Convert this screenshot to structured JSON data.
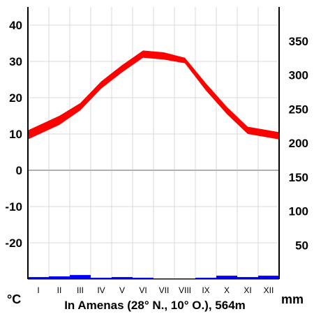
{
  "chart_data": {
    "type": "line",
    "title": "In Amenas (28° N., 10° O.), 564m",
    "categories": [
      "I",
      "II",
      "III",
      "IV",
      "V",
      "VI",
      "VII",
      "VIII",
      "IX",
      "X",
      "XI",
      "XII"
    ],
    "temperature": {
      "unit_label": "°C",
      "ylim": [
        -30,
        45
      ],
      "ticks": [
        40,
        30,
        20,
        10,
        0,
        -10,
        -20
      ],
      "band_low": [
        8.5,
        12.5,
        16.5,
        22.5,
        27,
        31,
        30.5,
        29.5,
        22,
        15.5,
        10,
        8.5
      ],
      "band_high": [
        11,
        15,
        18.5,
        24.5,
        29,
        33,
        32.5,
        31,
        24,
        17.5,
        12,
        10.5
      ],
      "color": "#ff0000"
    },
    "precipitation": {
      "unit_label": "mm",
      "ylim": [
        0,
        400
      ],
      "ticks": [
        350,
        300,
        250,
        200,
        150,
        100,
        50
      ],
      "values": [
        3,
        4,
        6,
        2,
        3,
        2,
        1,
        1,
        2,
        5,
        3,
        5
      ],
      "color": "#0000ff"
    },
    "grid": true,
    "zero_line_color": "#b0b0b0",
    "grid_color": "#d8d8d8"
  }
}
